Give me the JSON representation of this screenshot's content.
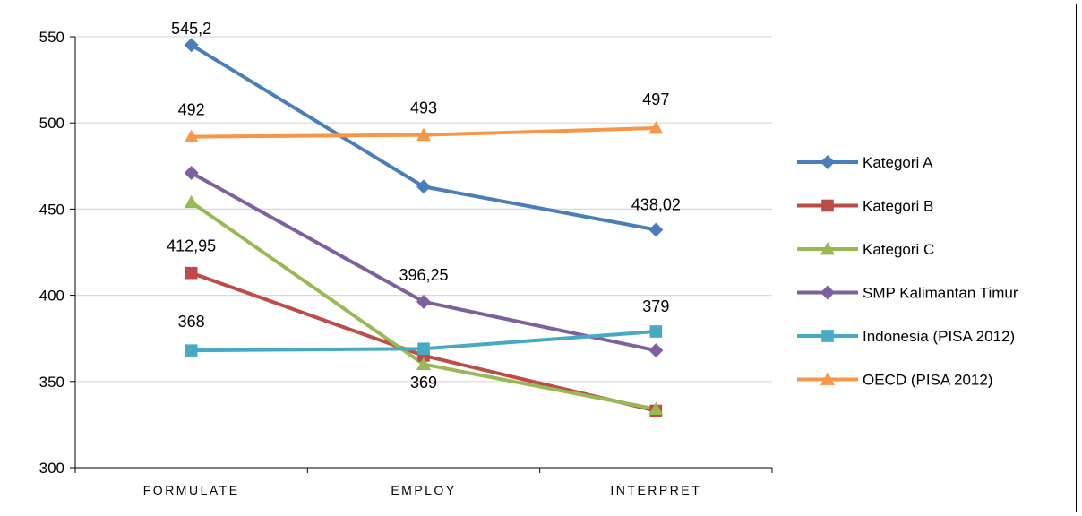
{
  "chart_data": {
    "type": "line",
    "title": "",
    "xlabel": "",
    "ylabel": "",
    "categories": [
      "FORMULATE",
      "EMPLOY",
      "INTERPRET"
    ],
    "ylim": [
      300,
      550
    ],
    "yticks": [
      300,
      350,
      400,
      450,
      500,
      550
    ],
    "ytick_labels": [
      "300",
      "350",
      "400",
      "450",
      "500",
      "550"
    ],
    "grid": true,
    "legend_position": "right",
    "series": [
      {
        "name": "Kategori A",
        "color": "#4a7ebb",
        "marker": "diamond",
        "values": [
          545.2,
          463,
          438.02
        ],
        "labels": [
          "545,2",
          "",
          "438,02"
        ]
      },
      {
        "name": "Kategori B",
        "color": "#be4b48",
        "marker": "square",
        "values": [
          412.95,
          365,
          333
        ],
        "labels": [
          "412,95",
          "",
          ""
        ]
      },
      {
        "name": "Kategori C",
        "color": "#98b954",
        "marker": "triangle",
        "values": [
          454,
          360,
          334
        ],
        "labels": [
          "",
          "",
          ""
        ]
      },
      {
        "name": "SMP Kalimantan Timur",
        "color": "#7d60a0",
        "marker": "diamond",
        "values": [
          471,
          396.25,
          368
        ],
        "labels": [
          "",
          "396,25",
          ""
        ]
      },
      {
        "name": "Indonesia (PISA 2012)",
        "color": "#46aac5",
        "marker": "square",
        "values": [
          368,
          369,
          379
        ],
        "labels": [
          "368",
          "369",
          "379"
        ]
      },
      {
        "name": "OECD (PISA 2012)",
        "color": "#f79646",
        "marker": "triangle",
        "values": [
          492,
          493,
          497
        ],
        "labels": [
          "492",
          "493",
          "497"
        ]
      }
    ]
  }
}
